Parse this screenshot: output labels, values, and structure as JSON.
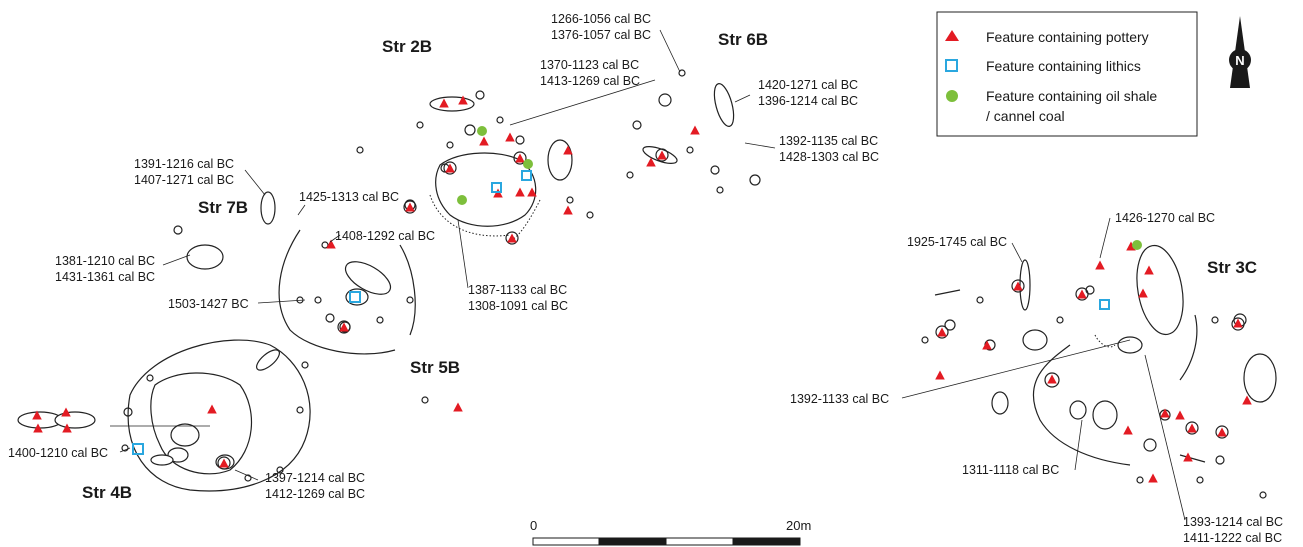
{
  "structures": [
    "Str 2B",
    "Str 6B",
    "Str 7B",
    "Str 5B",
    "Str 4B",
    "Str 3C"
  ],
  "dates": [
    "1266-1056 cal BC",
    "1376-1057 cal BC",
    "1370-1123 cal BC",
    "1413-1269 cal BC",
    "1420-1271 cal BC",
    "1396-1214 cal BC",
    "1392-1135 cal BC",
    "1428-1303 cal BC",
    "1391-1216 cal BC",
    "1407-1271 cal BC",
    "1425-1313 cal BC",
    "1408-1292 cal BC",
    "1381-1210 cal BC",
    "1431-1361 cal BC",
    "1387-1133 cal BC",
    "1308-1091 cal BC",
    "1503-1427 BC",
    "1400-1210 cal BC",
    "1397-1214 cal BC",
    "1412-1269 cal BC",
    "1426-1270 cal BC",
    "1925-1745 cal BC",
    "1392-1133 cal BC",
    "1311-1118 cal BC",
    "1393-1214 cal BC",
    "1411-1222 cal BC"
  ],
  "legend": {
    "items": [
      {
        "label": "Feature containing pottery",
        "symbol": "triangle",
        "color": "#e31b23"
      },
      {
        "label": "Feature containing lithics",
        "symbol": "square",
        "color": "#2aa7df"
      },
      {
        "label": "Feature containing oil shale",
        "label2": "/ cannel coal",
        "symbol": "circle",
        "color": "#7dbf3b"
      }
    ]
  },
  "north_arrow": {
    "letter": "N"
  },
  "scale_bar": {
    "min_label": "0",
    "max_label": "20m"
  }
}
